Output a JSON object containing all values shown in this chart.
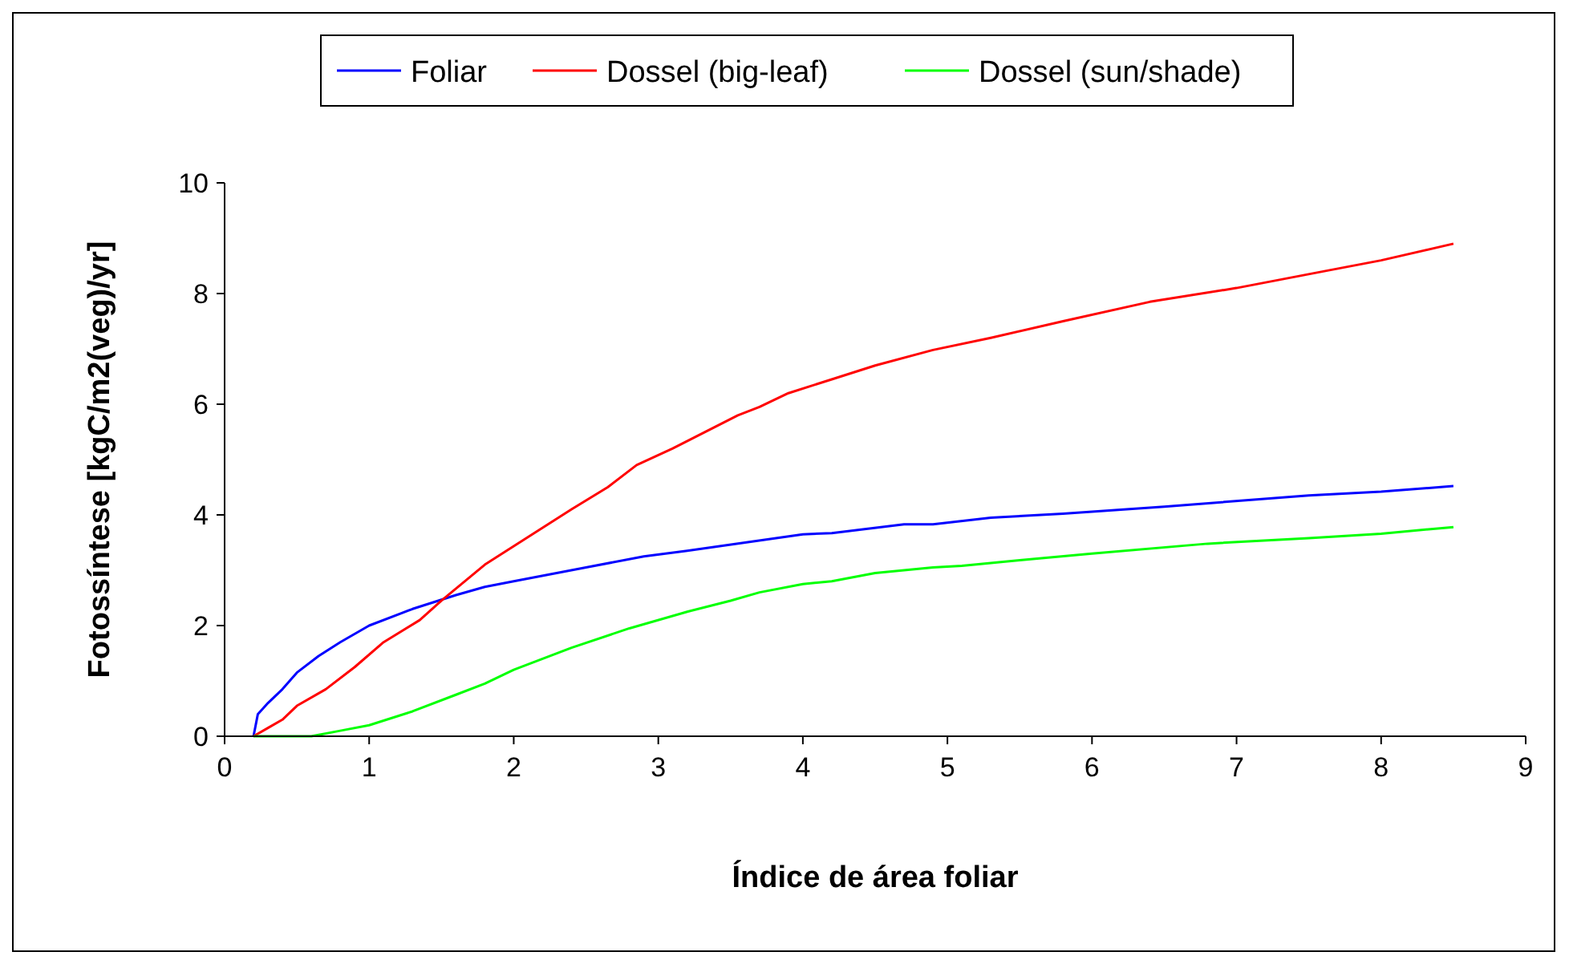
{
  "chart_data": {
    "type": "line",
    "xlabel": "Índice de área foliar",
    "ylabel": "Fotossíntese [kgC/m2(veg)/yr]",
    "xlim": [
      0,
      9
    ],
    "xticks": [
      0,
      1,
      2,
      3,
      4,
      5,
      6,
      7,
      8,
      9
    ],
    "ylim": [
      0,
      10
    ],
    "yticks": [
      0,
      2,
      4,
      6,
      8,
      10
    ],
    "grid": false,
    "legend": "top",
    "line_style": "solid",
    "series": [
      {
        "name": "Foliar",
        "color": "#0000ff",
        "x": [
          0.2,
          0.23,
          0.3,
          0.4,
          0.5,
          0.65,
          0.8,
          1.0,
          1.3,
          1.6,
          1.8,
          2.0,
          2.5,
          2.9,
          3.2,
          3.6,
          4.0,
          4.2,
          4.7,
          4.9,
          5.3,
          5.8,
          6.5,
          7.5,
          8.0,
          8.5
        ],
        "values": [
          0,
          0.4,
          0.6,
          0.85,
          1.15,
          1.45,
          1.7,
          2.0,
          2.3,
          2.55,
          2.7,
          2.8,
          3.05,
          3.25,
          3.35,
          3.5,
          3.65,
          3.67,
          3.83,
          3.83,
          3.95,
          4.02,
          4.15,
          4.35,
          4.42,
          4.52
        ]
      },
      {
        "name": "Dossel (big-leaf)",
        "color": "#ff0000",
        "x": [
          0.2,
          0.3,
          0.4,
          0.5,
          0.7,
          0.9,
          1.1,
          1.35,
          1.5,
          1.8,
          2.1,
          2.4,
          2.65,
          2.85,
          3.1,
          3.4,
          3.55,
          3.7,
          3.9,
          4.2,
          4.5,
          4.9,
          5.3,
          5.8,
          6.4,
          7.0,
          7.6,
          8.0,
          8.5
        ],
        "values": [
          0,
          0.15,
          0.3,
          0.55,
          0.85,
          1.25,
          1.7,
          2.1,
          2.45,
          3.1,
          3.6,
          4.1,
          4.5,
          4.9,
          5.2,
          5.6,
          5.8,
          5.95,
          6.2,
          6.45,
          6.7,
          6.98,
          7.2,
          7.5,
          7.85,
          8.1,
          8.4,
          8.6,
          8.9
        ]
      },
      {
        "name": "Dossel (sun/shade)",
        "color": "#00ff00",
        "x": [
          0.2,
          0.6,
          0.8,
          1.0,
          1.3,
          1.6,
          1.8,
          2.0,
          2.4,
          2.8,
          3.2,
          3.5,
          3.7,
          4.0,
          4.2,
          4.5,
          4.9,
          5.1,
          5.5,
          6.0,
          6.8,
          7.5,
          8.0,
          8.5
        ],
        "values": [
          0,
          0,
          0.1,
          0.2,
          0.45,
          0.75,
          0.95,
          1.2,
          1.6,
          1.95,
          2.25,
          2.45,
          2.6,
          2.75,
          2.8,
          2.95,
          3.05,
          3.08,
          3.18,
          3.3,
          3.48,
          3.58,
          3.66,
          3.78
        ]
      }
    ]
  }
}
